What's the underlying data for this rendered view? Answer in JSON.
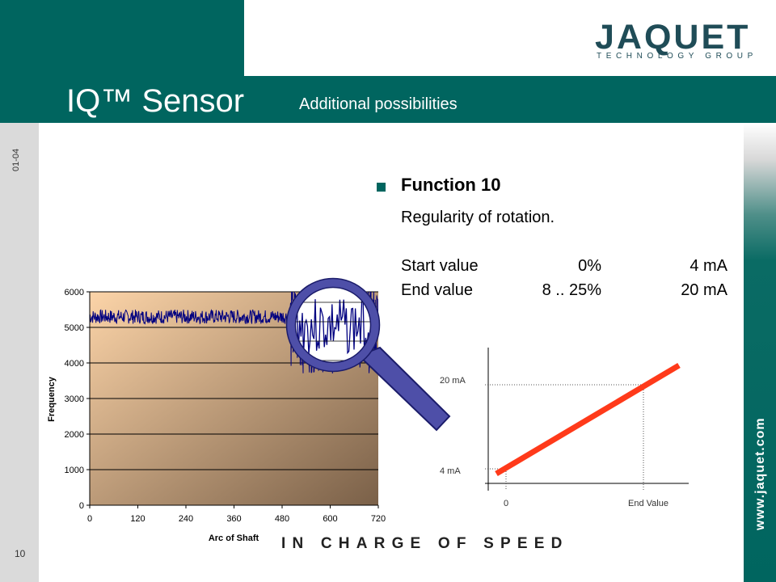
{
  "header": {
    "title": "IQ™ Sensor",
    "subtitle": "Additional possibilities",
    "colors": {
      "band": "#00655f",
      "logo": "#1f4c57"
    }
  },
  "logo": {
    "name": "JAQUET",
    "subtitle": "TECHNOLOGY GROUP"
  },
  "side": {
    "date_code": "01-04",
    "page_number": "10",
    "website": "www.jaquet.com"
  },
  "content": {
    "heading": "Function 10",
    "description": "Regularity of rotation.",
    "rows": [
      {
        "label": "Start value",
        "percent": "0%",
        "current": "4 mA"
      },
      {
        "label": "End value",
        "percent": "8 .. 25%",
        "current": "20 mA"
      }
    ]
  },
  "tagline": "IN CHARGE OF SPEED",
  "magnifier_icon": "magnifying-glass-icon",
  "chart_data": [
    {
      "type": "line",
      "xlabel": "Arc of Shaft",
      "ylabel": "Frequency",
      "x_ticks": [
        "0",
        "120",
        "240",
        "360",
        "480",
        "600",
        "720"
      ],
      "y_ticks": [
        "0",
        "1000",
        "2000",
        "3000",
        "4000",
        "5000",
        "6000"
      ],
      "xlim": [
        0,
        720
      ],
      "ylim": [
        0,
        6000
      ],
      "grid": "horizontal",
      "series": [
        {
          "color": "#000080",
          "segments": [
            {
              "x_range": [
                0,
                500
              ],
              "mean": 5300,
              "amplitude": 200
            },
            {
              "x_range": [
                500,
                720
              ],
              "mean": 5000,
              "amplitude": 1300
            }
          ]
        }
      ],
      "background": [
        "#fcd4a8",
        "#7a6048"
      ]
    },
    {
      "type": "line",
      "y_labels": [
        "20 mA",
        "4 mA"
      ],
      "x_labels": [
        "0",
        "End Value"
      ],
      "series": [
        {
          "color": "#ff3a1a",
          "x": [
            0,
            1.2
          ],
          "y": [
            4,
            23
          ]
        }
      ]
    }
  ]
}
